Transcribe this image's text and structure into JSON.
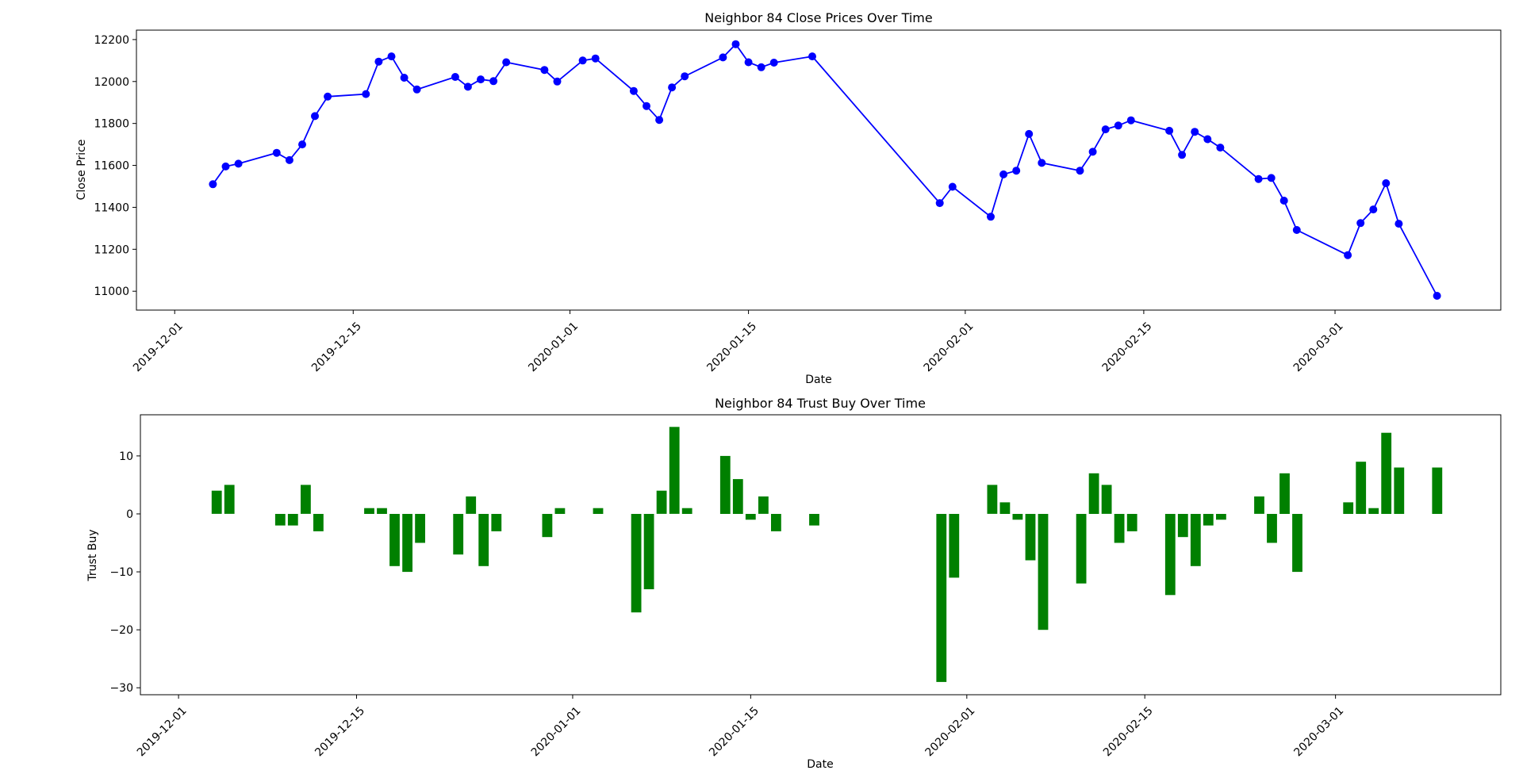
{
  "chart_data": [
    {
      "type": "line",
      "title": "Neighbor 84 Close Prices Over Time",
      "xlabel": "Date",
      "ylabel": "Close Price",
      "x_ticks": [
        "2019-12-01",
        "2019-12-15",
        "2020-01-01",
        "2020-01-15",
        "2020-02-01",
        "2020-02-15",
        "2020-03-01"
      ],
      "y_ticks": [
        11000,
        11200,
        11400,
        11600,
        11800,
        12000,
        12200
      ],
      "xlim": [
        "2019-11-28",
        "2020-03-14"
      ],
      "ylim": [
        10910,
        12245
      ],
      "grid": false,
      "color": "#0000ff",
      "marker": "circle",
      "series": [
        {
          "x": [
            "2019-12-04",
            "2019-12-05",
            "2019-12-06",
            "2019-12-09",
            "2019-12-10",
            "2019-12-11",
            "2019-12-12",
            "2019-12-13",
            "2019-12-16",
            "2019-12-17",
            "2019-12-18",
            "2019-12-19",
            "2019-12-20",
            "2019-12-23",
            "2019-12-24",
            "2019-12-25",
            "2019-12-26",
            "2019-12-27",
            "2019-12-30",
            "2019-12-31",
            "2020-01-02",
            "2020-01-03",
            "2020-01-06",
            "2020-01-07",
            "2020-01-08",
            "2020-01-09",
            "2020-01-10",
            "2020-01-13",
            "2020-01-14",
            "2020-01-15",
            "2020-01-16",
            "2020-01-17",
            "2020-01-20",
            "2020-01-30",
            "2020-01-31",
            "2020-02-03",
            "2020-02-04",
            "2020-02-05",
            "2020-02-06",
            "2020-02-07",
            "2020-02-10",
            "2020-02-11",
            "2020-02-12",
            "2020-02-13",
            "2020-02-14",
            "2020-02-17",
            "2020-02-18",
            "2020-02-19",
            "2020-02-20",
            "2020-02-21",
            "2020-02-24",
            "2020-02-25",
            "2020-02-26",
            "2020-02-27",
            "2020-03-02",
            "2020-03-03",
            "2020-03-04",
            "2020-03-05",
            "2020-03-06",
            "2020-03-09"
          ],
          "values": [
            11510,
            11595,
            11608,
            11660,
            11625,
            11700,
            11835,
            11928,
            11940,
            12095,
            12120,
            12018,
            11962,
            12022,
            11975,
            12010,
            12002,
            12092,
            12055,
            12000,
            12100,
            12110,
            11955,
            11883,
            11817,
            11972,
            12025,
            12115,
            12178,
            12092,
            12068,
            12090,
            12120,
            11420,
            11498,
            11355,
            11557,
            11575,
            11750,
            11612,
            11575,
            11665,
            11772,
            11790,
            11815,
            11765,
            11650,
            11760,
            11725,
            11685,
            11535,
            11540,
            11432,
            11292,
            11172,
            11325,
            11390,
            11515,
            11322,
            10978
          ]
        }
      ]
    },
    {
      "type": "bar",
      "title": "Neighbor 84 Trust Buy Over Time",
      "xlabel": "Date",
      "ylabel": "Trust Buy",
      "x_ticks": [
        "2019-12-01",
        "2019-12-15",
        "2020-01-01",
        "2020-01-15",
        "2020-02-01",
        "2020-02-15",
        "2020-03-01"
      ],
      "y_ticks": [
        -30,
        -20,
        -10,
        0,
        10
      ],
      "xlim": [
        "2019-11-28",
        "2020-03-14"
      ],
      "ylim": [
        -31.2,
        17.1
      ],
      "grid": false,
      "color": "#008000",
      "series": [
        {
          "x": [
            "2019-12-04",
            "2019-12-05",
            "2019-12-06",
            "2019-12-09",
            "2019-12-10",
            "2019-12-11",
            "2019-12-12",
            "2019-12-13",
            "2019-12-16",
            "2019-12-17",
            "2019-12-18",
            "2019-12-19",
            "2019-12-20",
            "2019-12-23",
            "2019-12-24",
            "2019-12-25",
            "2019-12-26",
            "2019-12-27",
            "2019-12-30",
            "2019-12-31",
            "2020-01-02",
            "2020-01-03",
            "2020-01-06",
            "2020-01-07",
            "2020-01-08",
            "2020-01-09",
            "2020-01-10",
            "2020-01-13",
            "2020-01-14",
            "2020-01-15",
            "2020-01-16",
            "2020-01-17",
            "2020-01-20",
            "2020-01-30",
            "2020-01-31",
            "2020-02-03",
            "2020-02-04",
            "2020-02-05",
            "2020-02-06",
            "2020-02-07",
            "2020-02-10",
            "2020-02-11",
            "2020-02-12",
            "2020-02-13",
            "2020-02-14",
            "2020-02-17",
            "2020-02-18",
            "2020-02-19",
            "2020-02-20",
            "2020-02-21",
            "2020-02-24",
            "2020-02-25",
            "2020-02-26",
            "2020-02-27",
            "2020-03-02",
            "2020-03-03",
            "2020-03-04",
            "2020-03-05",
            "2020-03-06",
            "2020-03-09"
          ],
          "values": [
            4,
            5,
            0,
            -2,
            -2,
            5,
            -3,
            0,
            1,
            1,
            -9,
            -10,
            -5,
            -7,
            3,
            -9,
            -3,
            0,
            -4,
            1,
            0,
            1,
            -17,
            -13,
            4,
            15,
            1,
            10,
            6,
            -1,
            3,
            -3,
            -2,
            -29,
            -11,
            5,
            2,
            -1,
            -8,
            -20,
            -12,
            7,
            5,
            -5,
            -3,
            -14,
            -4,
            -9,
            -2,
            -1,
            3,
            -5,
            7,
            -10,
            2,
            9,
            1,
            14,
            8,
            8
          ]
        }
      ]
    }
  ]
}
